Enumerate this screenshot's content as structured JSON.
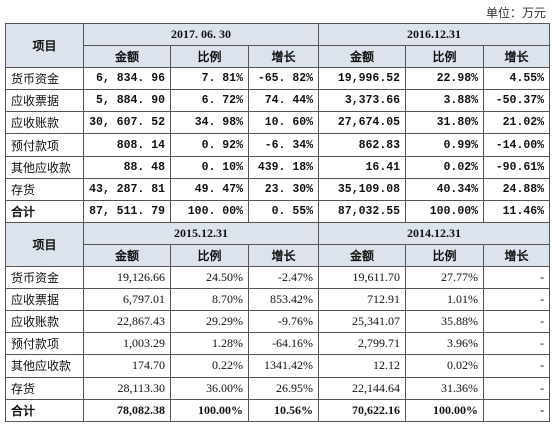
{
  "unit": "单位：万元",
  "tables": [
    {
      "item_header": "项目",
      "periods": [
        "2017. 06. 30",
        "2016.12.31"
      ],
      "columns": [
        "金额",
        "比例",
        "增长"
      ],
      "rows": [
        [
          "货币资金",
          "6, 834. 96",
          "7. 81%",
          "-65. 82%",
          "19,996.52",
          "22.98%",
          "4.55%"
        ],
        [
          "应收票据",
          "5, 884. 90",
          "6. 72%",
          "74. 44%",
          "3,373.66",
          "3.88%",
          "-50.37%"
        ],
        [
          "应收账款",
          "30, 607. 52",
          "34. 98%",
          "10. 60%",
          "27,674.05",
          "31.80%",
          "21.02%"
        ],
        [
          "预付款项",
          "808. 14",
          "0. 92%",
          "-6. 34%",
          "862.83",
          "0.99%",
          "-14.00%"
        ],
        [
          "其他应收款",
          "88. 48",
          "0. 10%",
          "439. 18%",
          "16.41",
          "0.02%",
          "-90.61%"
        ],
        [
          "存货",
          "43, 287. 81",
          "49. 47%",
          "23. 30%",
          "35,109.08",
          "40.34%",
          "24.88%"
        ],
        [
          "合计",
          "87, 511. 79",
          "100. 00%",
          "0. 55%",
          "87,032.55",
          "100.00%",
          "11.46%"
        ]
      ]
    },
    {
      "item_header": "项目",
      "periods": [
        "2015.12.31",
        "2014.12.31"
      ],
      "columns": [
        "金额",
        "比例",
        "增长"
      ],
      "rows": [
        [
          "货币资金",
          "19,126.66",
          "24.50%",
          "-2.47%",
          "19,611.70",
          "27.77%",
          "-"
        ],
        [
          "应收票据",
          "6,797.01",
          "8.70%",
          "853.42%",
          "712.91",
          "1.01%",
          "-"
        ],
        [
          "应收账款",
          "22,867.43",
          "29.29%",
          "-9.76%",
          "25,341.07",
          "35.88%",
          "-"
        ],
        [
          "预付款项",
          "1,003.29",
          "1.28%",
          "-64.16%",
          "2,799.71",
          "3.96%",
          "-"
        ],
        [
          "其他应收款",
          "174.70",
          "0.22%",
          "1341.42%",
          "12.12",
          "0.02%",
          "-"
        ],
        [
          "存货",
          "28,113.30",
          "36.00%",
          "26.95%",
          "22,144.64",
          "31.36%",
          "-"
        ],
        [
          "合计",
          "78,082.38",
          "100.00%",
          "10.56%",
          "70,622.16",
          "100.00%",
          "-"
        ]
      ]
    }
  ]
}
